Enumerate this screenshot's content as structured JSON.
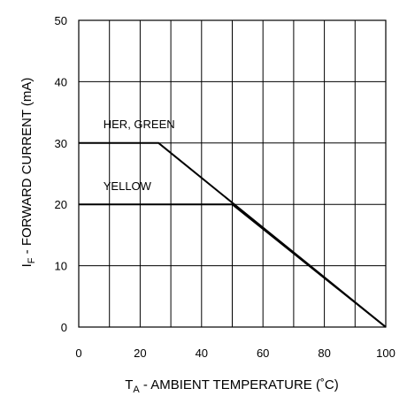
{
  "chart_data": {
    "type": "line",
    "title": "",
    "xlabel": {
      "main": "T",
      "sub": "A",
      "rest": " - AMBIENT TEMPERATURE (˚C)"
    },
    "ylabel": {
      "main": "I",
      "sub": "F",
      "rest": " - FORWARD CURRENT (mA)"
    },
    "xlim": [
      0,
      100
    ],
    "ylim": [
      0,
      50
    ],
    "x_ticks": [
      0,
      20,
      40,
      60,
      80,
      100
    ],
    "x_tick_labels": [
      "0",
      "20",
      "40",
      "60",
      "80",
      "100"
    ],
    "y_ticks": [
      0,
      10,
      20,
      30,
      40,
      50
    ],
    "y_tick_labels": [
      "0",
      "10",
      "20",
      "30",
      "40",
      "50"
    ],
    "grid": true,
    "grid_x_step": 10,
    "grid_y_step": 10,
    "legend": "none",
    "series": [
      {
        "name": "HER, GREEN",
        "points": [
          [
            0,
            30
          ],
          [
            26,
            30
          ],
          [
            100,
            0
          ]
        ]
      },
      {
        "name": "YELLOW",
        "points": [
          [
            0,
            20
          ],
          [
            50,
            20
          ],
          [
            100,
            0
          ]
        ]
      }
    ],
    "series_labels": [
      {
        "text": "HER, GREEN",
        "x": 8,
        "y": 32.4
      },
      {
        "text": "YELLOW",
        "x": 8,
        "y": 22.3
      }
    ]
  }
}
